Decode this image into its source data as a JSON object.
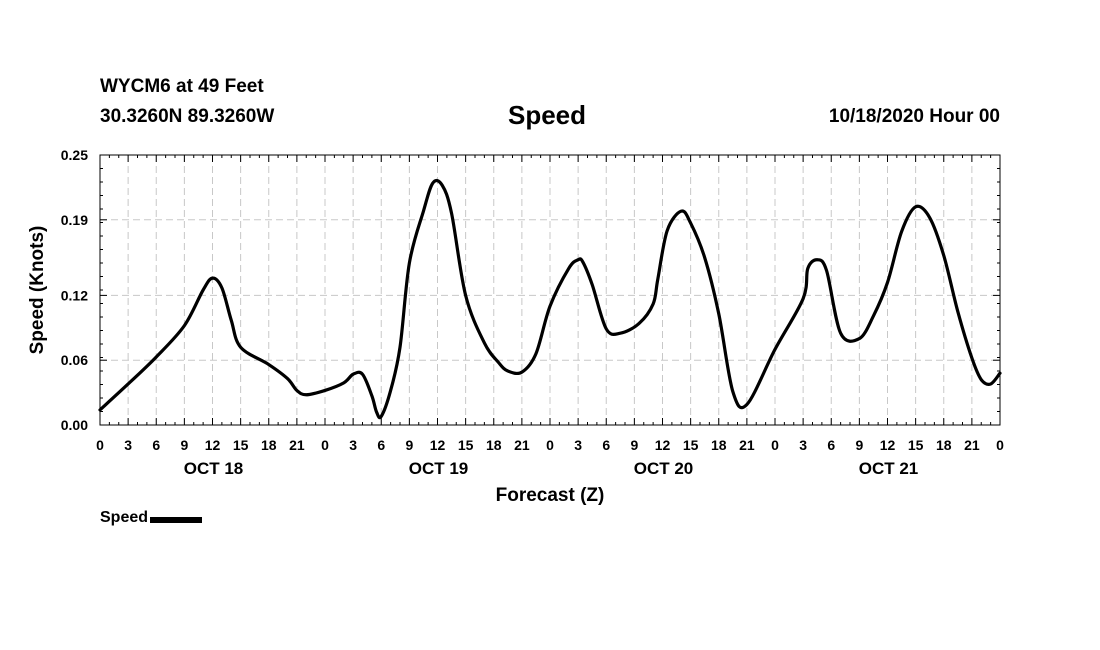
{
  "header": {
    "station": "WYCM6 at 49 Feet",
    "coordinates": "30.3260N 89.3260W",
    "title": "Speed",
    "datetime": "10/18/2020 Hour 00"
  },
  "chart_data": {
    "type": "line",
    "title": "Speed",
    "xlabel": "Forecast (Z)",
    "ylabel": "Speed (Knots)",
    "xlim": [
      0,
      96
    ],
    "ylim": [
      0,
      0.25
    ],
    "yticks": [
      0,
      0.06,
      0.12,
      0.19,
      0.25
    ],
    "ytick_labels": [
      "0.00",
      "0.06",
      "0.12",
      "0.19",
      "0.25"
    ],
    "xticks": [
      0,
      3,
      6,
      9,
      12,
      15,
      18,
      21,
      24,
      27,
      30,
      33,
      36,
      39,
      42,
      45,
      48,
      51,
      54,
      57,
      60,
      63,
      66,
      69,
      72,
      75,
      78,
      81,
      84,
      87,
      90,
      93,
      96
    ],
    "xtick_labels": [
      "0",
      "3",
      "6",
      "9",
      "12",
      "15",
      "18",
      "21",
      "0",
      "3",
      "6",
      "9",
      "12",
      "15",
      "18",
      "21",
      "0",
      "3",
      "6",
      "9",
      "12",
      "15",
      "18",
      "21",
      "0",
      "3",
      "6",
      "9",
      "12",
      "15",
      "18",
      "21",
      "0"
    ],
    "day_labels": [
      {
        "label": "OCT 18",
        "x": 12
      },
      {
        "label": "OCT 19",
        "x": 36
      },
      {
        "label": "OCT 20",
        "x": 60
      },
      {
        "label": "OCT 21",
        "x": 84
      }
    ],
    "grid": true,
    "legend": "bottom-left",
    "series": [
      {
        "name": "Speed",
        "color": "#000000",
        "x": [
          0,
          3,
          6,
          9,
          11,
          12,
          13,
          14,
          15,
          18,
          20,
          21,
          22,
          24,
          26,
          27,
          28,
          29,
          29.5,
          30,
          31,
          32,
          33,
          34.5,
          35.5,
          36.5,
          37.5,
          39,
          41,
          42.5,
          43.5,
          45,
          46.5,
          48,
          50,
          51,
          51.5,
          52.5,
          54,
          55.5,
          57.5,
          59,
          59.5,
          60.5,
          62,
          63,
          64.5,
          66,
          67.5,
          69,
          72,
          75,
          75.5,
          76.5,
          77.5,
          79,
          81,
          82.5,
          84,
          85.5,
          87,
          88.5,
          90,
          91.5,
          93,
          94,
          95,
          96
        ],
        "values": [
          0.014,
          0.038,
          0.063,
          0.092,
          0.125,
          0.136,
          0.127,
          0.097,
          0.072,
          0.056,
          0.043,
          0.032,
          0.028,
          0.032,
          0.039,
          0.047,
          0.047,
          0.027,
          0.012,
          0.008,
          0.032,
          0.072,
          0.15,
          0.198,
          0.224,
          0.222,
          0.196,
          0.12,
          0.076,
          0.058,
          0.05,
          0.049,
          0.066,
          0.11,
          0.145,
          0.153,
          0.151,
          0.13,
          0.089,
          0.085,
          0.094,
          0.112,
          0.135,
          0.18,
          0.198,
          0.187,
          0.155,
          0.103,
          0.031,
          0.019,
          0.07,
          0.117,
          0.145,
          0.153,
          0.143,
          0.085,
          0.08,
          0.101,
          0.132,
          0.179,
          0.202,
          0.192,
          0.157,
          0.105,
          0.062,
          0.042,
          0.038,
          0.048
        ]
      }
    ]
  }
}
